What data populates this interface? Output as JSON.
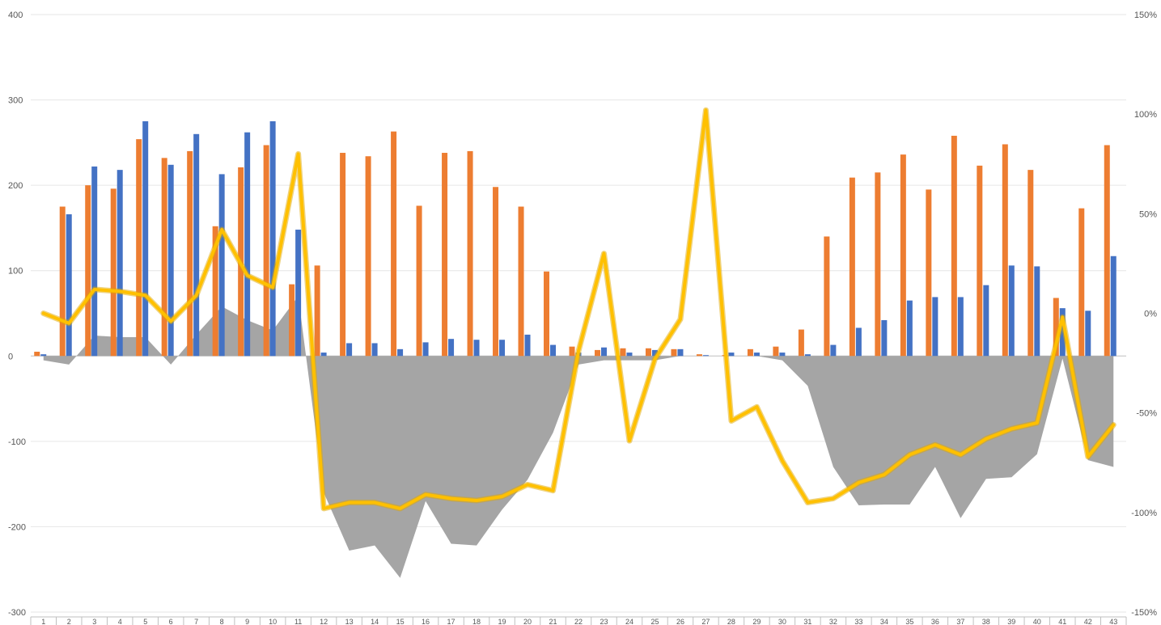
{
  "chart_data": {
    "type": "bar",
    "title": "",
    "xlabel": "",
    "ylabel": "",
    "y_left": {
      "min": -300,
      "max": 400,
      "ticks": [
        "400",
        "300",
        "200",
        "100",
        "0",
        "-100",
        "-200",
        "-300"
      ],
      "tick_values": [
        400,
        300,
        200,
        100,
        0,
        -100,
        -200,
        -300
      ]
    },
    "y_right": {
      "min": -1.5,
      "max": 1.5,
      "ticks": [
        "150%",
        "100%",
        "50%",
        "0%",
        "-50%",
        "-100%",
        "-150%"
      ],
      "tick_values": [
        1.5,
        1.0,
        0.5,
        0.0,
        -0.5,
        -1.0,
        -1.5
      ]
    },
    "grid": true,
    "legend": "none",
    "categories": [
      "1",
      "2",
      "3",
      "4",
      "5",
      "6",
      "7",
      "8",
      "9",
      "10",
      "11",
      "12",
      "13",
      "14",
      "15",
      "16",
      "17",
      "18",
      "19",
      "20",
      "21",
      "22",
      "23",
      "24",
      "25",
      "26",
      "27",
      "28",
      "29",
      "30",
      "31",
      "32",
      "33",
      "34",
      "35",
      "36",
      "37",
      "38",
      "39",
      "40",
      "41",
      "42",
      "43"
    ],
    "series": [
      {
        "type": "bar",
        "axis": "left",
        "color": "#ED7D31",
        "values": [
          5,
          175,
          200,
          196,
          254,
          232,
          240,
          152,
          221,
          247,
          84,
          106,
          238,
          234,
          263,
          176,
          238,
          240,
          198,
          175,
          99,
          11,
          7,
          9,
          9,
          8,
          2,
          1,
          8,
          11,
          31,
          140,
          209,
          215,
          236,
          195,
          258,
          223,
          248,
          218,
          68,
          173,
          247
        ]
      },
      {
        "type": "bar",
        "axis": "left",
        "color": "#4472C4",
        "values": [
          2,
          166,
          222,
          218,
          275,
          224,
          260,
          213,
          262,
          275,
          148,
          4,
          15,
          15,
          8,
          16,
          20,
          19,
          19,
          25,
          13,
          4,
          10,
          4,
          7,
          8,
          1,
          4,
          4,
          4,
          2,
          13,
          33,
          42,
          65,
          69,
          69,
          83,
          106,
          105,
          56,
          53,
          117
        ]
      },
      {
        "type": "area",
        "axis": "left",
        "color": "#A5A5A5",
        "values": [
          -5,
          -10,
          24,
          22,
          22,
          -10,
          25,
          58,
          42,
          30,
          70,
          -160,
          -228,
          -222,
          -260,
          -170,
          -220,
          -222,
          -180,
          -145,
          -90,
          -10,
          -5,
          -5,
          -5,
          0,
          0,
          0,
          0,
          -5,
          -35,
          -130,
          -175,
          -174,
          -174,
          -130,
          -190,
          -144,
          -142,
          -115,
          -3,
          -122,
          -130
        ]
      },
      {
        "type": "line",
        "axis": "right",
        "color": "#FFC000",
        "values": [
          0.0,
          -0.05,
          0.12,
          0.11,
          0.09,
          -0.04,
          0.09,
          0.42,
          0.19,
          0.13,
          0.8,
          -0.98,
          -0.95,
          -0.95,
          -0.98,
          -0.91,
          -0.93,
          -0.94,
          -0.92,
          -0.86,
          -0.89,
          -0.19,
          0.3,
          -0.64,
          -0.23,
          -0.03,
          1.02,
          -0.54,
          -0.47,
          -0.74,
          -0.95,
          -0.93,
          -0.85,
          -0.81,
          -0.71,
          -0.66,
          -0.71,
          -0.63,
          -0.58,
          -0.55,
          -0.02,
          -0.72,
          -0.56
        ]
      }
    ]
  }
}
